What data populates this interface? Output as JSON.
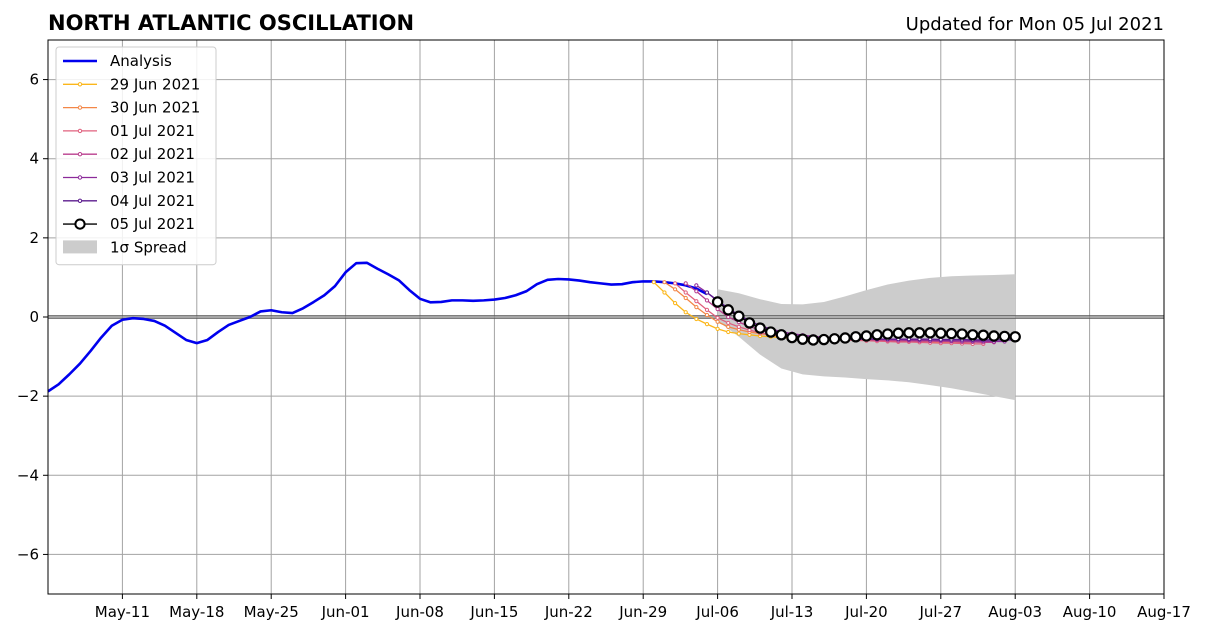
{
  "header": {
    "title": "NORTH ATLANTIC OSCILLATION",
    "updated": "Updated for Mon 05 Jul 2021"
  },
  "chart_data": {
    "type": "line",
    "title": "NORTH ATLANTIC OSCILLATION",
    "subtitle": "Updated for Mon 05 Jul 2021",
    "xlabel": "",
    "ylabel": "",
    "xlim": [
      "2021-05-04",
      "2021-08-17"
    ],
    "ylim": [
      -7,
      7
    ],
    "grid": true,
    "legend_position": "top-left",
    "x_ticks": [
      "2021-05-11",
      "2021-05-18",
      "2021-05-25",
      "2021-06-01",
      "2021-06-08",
      "2021-06-15",
      "2021-06-22",
      "2021-06-29",
      "2021-07-06",
      "2021-07-13",
      "2021-07-20",
      "2021-07-27",
      "2021-08-03",
      "2021-08-10",
      "2021-08-17"
    ],
    "x_tick_labels": [
      "May-11",
      "May-18",
      "May-25",
      "Jun-01",
      "Jun-08",
      "Jun-15",
      "Jun-22",
      "Jun-29",
      "Jul-06",
      "Jul-13",
      "Jul-20",
      "Jul-27",
      "Aug-03",
      "Aug-10",
      "Aug-17"
    ],
    "y_ticks": [
      -6,
      -4,
      -2,
      0,
      2,
      4,
      6
    ],
    "y_tick_labels": [
      "−6",
      "−4",
      "−2",
      "0",
      "2",
      "4",
      "6"
    ],
    "spread": {
      "name": "1σ Spread",
      "color": "#cccccc",
      "x": [
        "2021-07-06",
        "2021-07-08",
        "2021-07-10",
        "2021-07-12",
        "2021-07-14",
        "2021-07-16",
        "2021-07-18",
        "2021-07-20",
        "2021-07-22",
        "2021-07-24",
        "2021-07-26",
        "2021-07-28",
        "2021-07-30",
        "2021-08-01",
        "2021-08-03"
      ],
      "upper": [
        0.7,
        0.6,
        0.45,
        0.33,
        0.32,
        0.38,
        0.52,
        0.68,
        0.82,
        0.92,
        0.99,
        1.03,
        1.05,
        1.06,
        1.08
      ],
      "lower": [
        -0.1,
        -0.5,
        -0.95,
        -1.3,
        -1.45,
        -1.5,
        -1.53,
        -1.57,
        -1.6,
        -1.65,
        -1.72,
        -1.8,
        -1.9,
        -2.0,
        -2.1
      ]
    },
    "series": [
      {
        "name": "Analysis",
        "color": "#0000ee",
        "x": [
          "2021-05-04",
          "2021-05-05",
          "2021-05-06",
          "2021-05-07",
          "2021-05-08",
          "2021-05-09",
          "2021-05-10",
          "2021-05-11",
          "2021-05-12",
          "2021-05-13",
          "2021-05-14",
          "2021-05-15",
          "2021-05-16",
          "2021-05-17",
          "2021-05-18",
          "2021-05-19",
          "2021-05-20",
          "2021-05-21",
          "2021-05-22",
          "2021-05-23",
          "2021-05-24",
          "2021-05-25",
          "2021-05-26",
          "2021-05-27",
          "2021-05-28",
          "2021-05-29",
          "2021-05-30",
          "2021-05-31",
          "2021-06-01",
          "2021-06-02",
          "2021-06-03",
          "2021-06-04",
          "2021-06-05",
          "2021-06-06",
          "2021-06-07",
          "2021-06-08",
          "2021-06-09",
          "2021-06-10",
          "2021-06-11",
          "2021-06-12",
          "2021-06-13",
          "2021-06-14",
          "2021-06-15",
          "2021-06-16",
          "2021-06-17",
          "2021-06-18",
          "2021-06-19",
          "2021-06-20",
          "2021-06-21",
          "2021-06-22",
          "2021-06-23",
          "2021-06-24",
          "2021-06-25",
          "2021-06-26",
          "2021-06-27",
          "2021-06-28",
          "2021-06-29",
          "2021-06-30",
          "2021-07-01",
          "2021-07-02",
          "2021-07-03",
          "2021-07-04",
          "2021-07-05"
        ],
        "values": [
          -1.88,
          -1.7,
          -1.45,
          -1.18,
          -0.86,
          -0.52,
          -0.22,
          -0.07,
          -0.03,
          -0.05,
          -0.1,
          -0.22,
          -0.4,
          -0.58,
          -0.66,
          -0.58,
          -0.38,
          -0.2,
          -0.1,
          0.0,
          0.14,
          0.17,
          0.12,
          0.1,
          0.22,
          0.38,
          0.55,
          0.78,
          1.13,
          1.36,
          1.37,
          1.22,
          1.08,
          0.93,
          0.68,
          0.46,
          0.37,
          0.38,
          0.42,
          0.42,
          0.41,
          0.42,
          0.44,
          0.48,
          0.55,
          0.65,
          0.83,
          0.94,
          0.96,
          0.95,
          0.92,
          0.88,
          0.85,
          0.82,
          0.83,
          0.88,
          0.9,
          0.9,
          0.88,
          0.85,
          0.8,
          0.72,
          0.58
        ]
      },
      {
        "name": "29 Jun 2021",
        "color": "#fbb61a",
        "x": [
          "2021-06-30",
          "2021-07-01",
          "2021-07-02",
          "2021-07-03",
          "2021-07-04",
          "2021-07-05",
          "2021-07-06",
          "2021-07-07",
          "2021-07-08",
          "2021-07-09",
          "2021-07-10",
          "2021-07-11",
          "2021-07-12",
          "2021-07-13"
        ],
        "values": [
          0.88,
          0.62,
          0.35,
          0.12,
          -0.05,
          -0.18,
          -0.3,
          -0.38,
          -0.42,
          -0.45,
          -0.48,
          -0.5,
          -0.52,
          -0.54
        ]
      },
      {
        "name": "30 Jun 2021",
        "color": "#f38748",
        "x": [
          "2021-07-01",
          "2021-07-02",
          "2021-07-03",
          "2021-07-04",
          "2021-07-05",
          "2021-07-06",
          "2021-07-07",
          "2021-07-08",
          "2021-07-09",
          "2021-07-10",
          "2021-07-11",
          "2021-07-12",
          "2021-07-13",
          "2021-07-14",
          "2021-07-15",
          "2021-07-16",
          "2021-07-17",
          "2021-07-18",
          "2021-07-19",
          "2021-07-20",
          "2021-07-21",
          "2021-07-22",
          "2021-07-23",
          "2021-07-24",
          "2021-07-25",
          "2021-07-26",
          "2021-07-27",
          "2021-07-28",
          "2021-07-29",
          "2021-07-30"
        ],
        "values": [
          0.88,
          0.7,
          0.48,
          0.25,
          0.05,
          -0.12,
          -0.25,
          -0.32,
          -0.38,
          -0.42,
          -0.45,
          -0.48,
          -0.5,
          -0.52,
          -0.53,
          -0.54,
          -0.55,
          -0.56,
          -0.57,
          -0.58,
          -0.59,
          -0.6,
          -0.6,
          -0.61,
          -0.62,
          -0.63,
          -0.64,
          -0.65,
          -0.66,
          -0.67
        ]
      },
      {
        "name": "01 Jul 2021",
        "color": "#e0607e",
        "x": [
          "2021-07-02",
          "2021-07-03",
          "2021-07-04",
          "2021-07-05",
          "2021-07-06",
          "2021-07-07",
          "2021-07-08",
          "2021-07-09",
          "2021-07-10",
          "2021-07-11",
          "2021-07-12",
          "2021-07-13",
          "2021-07-14",
          "2021-07-15",
          "2021-07-16",
          "2021-07-17",
          "2021-07-18",
          "2021-07-19",
          "2021-07-20",
          "2021-07-21",
          "2021-07-22",
          "2021-07-23",
          "2021-07-24",
          "2021-07-25",
          "2021-07-26",
          "2021-07-27",
          "2021-07-28",
          "2021-07-29",
          "2021-07-30",
          "2021-07-31"
        ],
        "values": [
          0.85,
          0.62,
          0.4,
          0.18,
          -0.02,
          -0.15,
          -0.25,
          -0.33,
          -0.4,
          -0.45,
          -0.49,
          -0.52,
          -0.54,
          -0.55,
          -0.56,
          -0.57,
          -0.58,
          -0.59,
          -0.6,
          -0.61,
          -0.62,
          -0.63,
          -0.63,
          -0.64,
          -0.65,
          -0.66,
          -0.66,
          -0.67,
          -0.68,
          -0.68
        ]
      },
      {
        "name": "02 Jul 2021",
        "color": "#b93e8e",
        "x": [
          "2021-07-03",
          "2021-07-04",
          "2021-07-05",
          "2021-07-06",
          "2021-07-07",
          "2021-07-08",
          "2021-07-09",
          "2021-07-10",
          "2021-07-11",
          "2021-07-12",
          "2021-07-13",
          "2021-07-14",
          "2021-07-15",
          "2021-07-16",
          "2021-07-17",
          "2021-07-18",
          "2021-07-19",
          "2021-07-20",
          "2021-07-21",
          "2021-07-22",
          "2021-07-23",
          "2021-07-24",
          "2021-07-25",
          "2021-07-26",
          "2021-07-27",
          "2021-07-28",
          "2021-07-29",
          "2021-07-30",
          "2021-07-31",
          "2021-08-01"
        ],
        "values": [
          0.85,
          0.65,
          0.42,
          0.2,
          0.0,
          -0.13,
          -0.24,
          -0.33,
          -0.4,
          -0.45,
          -0.48,
          -0.5,
          -0.52,
          -0.53,
          -0.54,
          -0.55,
          -0.56,
          -0.57,
          -0.58,
          -0.59,
          -0.6,
          -0.6,
          -0.61,
          -0.61,
          -0.62,
          -0.62,
          -0.63,
          -0.63,
          -0.64,
          -0.64
        ]
      },
      {
        "name": "03 Jul 2021",
        "color": "#8c2a9a",
        "x": [
          "2021-07-04",
          "2021-07-05",
          "2021-07-06",
          "2021-07-07",
          "2021-07-08",
          "2021-07-09",
          "2021-07-10",
          "2021-07-11",
          "2021-07-12",
          "2021-07-13",
          "2021-07-14",
          "2021-07-15",
          "2021-07-16",
          "2021-07-17",
          "2021-07-18",
          "2021-07-19",
          "2021-07-20",
          "2021-07-21",
          "2021-07-22",
          "2021-07-23",
          "2021-07-24",
          "2021-07-25",
          "2021-07-26",
          "2021-07-27",
          "2021-07-28",
          "2021-07-29",
          "2021-07-30",
          "2021-07-31",
          "2021-08-01",
          "2021-08-02"
        ],
        "values": [
          0.8,
          0.62,
          0.4,
          0.18,
          0.0,
          -0.12,
          -0.22,
          -0.3,
          -0.37,
          -0.42,
          -0.46,
          -0.49,
          -0.51,
          -0.52,
          -0.53,
          -0.54,
          -0.55,
          -0.56,
          -0.56,
          -0.57,
          -0.58,
          -0.58,
          -0.59,
          -0.59,
          -0.6,
          -0.6,
          -0.61,
          -0.61,
          -0.62,
          -0.62
        ]
      },
      {
        "name": "04 Jul 2021",
        "color": "#5b1b8e",
        "x": [
          "2021-07-05",
          "2021-07-06",
          "2021-07-07",
          "2021-07-08",
          "2021-07-09",
          "2021-07-10",
          "2021-07-11",
          "2021-07-12",
          "2021-07-13",
          "2021-07-14",
          "2021-07-15",
          "2021-07-16",
          "2021-07-17",
          "2021-07-18",
          "2021-07-19",
          "2021-07-20",
          "2021-07-21",
          "2021-07-22",
          "2021-07-23",
          "2021-07-24",
          "2021-07-25",
          "2021-07-26",
          "2021-07-27",
          "2021-07-28",
          "2021-07-29",
          "2021-07-30",
          "2021-07-31",
          "2021-08-01",
          "2021-08-02",
          "2021-08-03"
        ],
        "values": [
          0.62,
          0.42,
          0.22,
          0.05,
          -0.1,
          -0.22,
          -0.32,
          -0.4,
          -0.46,
          -0.5,
          -0.53,
          -0.55,
          -0.56,
          -0.56,
          -0.56,
          -0.56,
          -0.56,
          -0.56,
          -0.56,
          -0.56,
          -0.56,
          -0.56,
          -0.57,
          -0.57,
          -0.57,
          -0.58,
          -0.58,
          -0.58,
          -0.58,
          -0.58
        ]
      },
      {
        "name": "05 Jul 2021",
        "color": "#000000",
        "x": [
          "2021-07-06",
          "2021-07-07",
          "2021-07-08",
          "2021-07-09",
          "2021-07-10",
          "2021-07-11",
          "2021-07-12",
          "2021-07-13",
          "2021-07-14",
          "2021-07-15",
          "2021-07-16",
          "2021-07-17",
          "2021-07-18",
          "2021-07-19",
          "2021-07-20",
          "2021-07-21",
          "2021-07-22",
          "2021-07-23",
          "2021-07-24",
          "2021-07-25",
          "2021-07-26",
          "2021-07-27",
          "2021-07-28",
          "2021-07-29",
          "2021-07-30",
          "2021-07-31",
          "2021-08-01",
          "2021-08-02",
          "2021-08-03"
        ],
        "values": [
          0.38,
          0.18,
          0.02,
          -0.15,
          -0.28,
          -0.38,
          -0.45,
          -0.52,
          -0.56,
          -0.58,
          -0.57,
          -0.55,
          -0.53,
          -0.5,
          -0.48,
          -0.45,
          -0.43,
          -0.41,
          -0.4,
          -0.4,
          -0.4,
          -0.41,
          -0.42,
          -0.43,
          -0.45,
          -0.46,
          -0.48,
          -0.49,
          -0.5
        ]
      }
    ]
  }
}
